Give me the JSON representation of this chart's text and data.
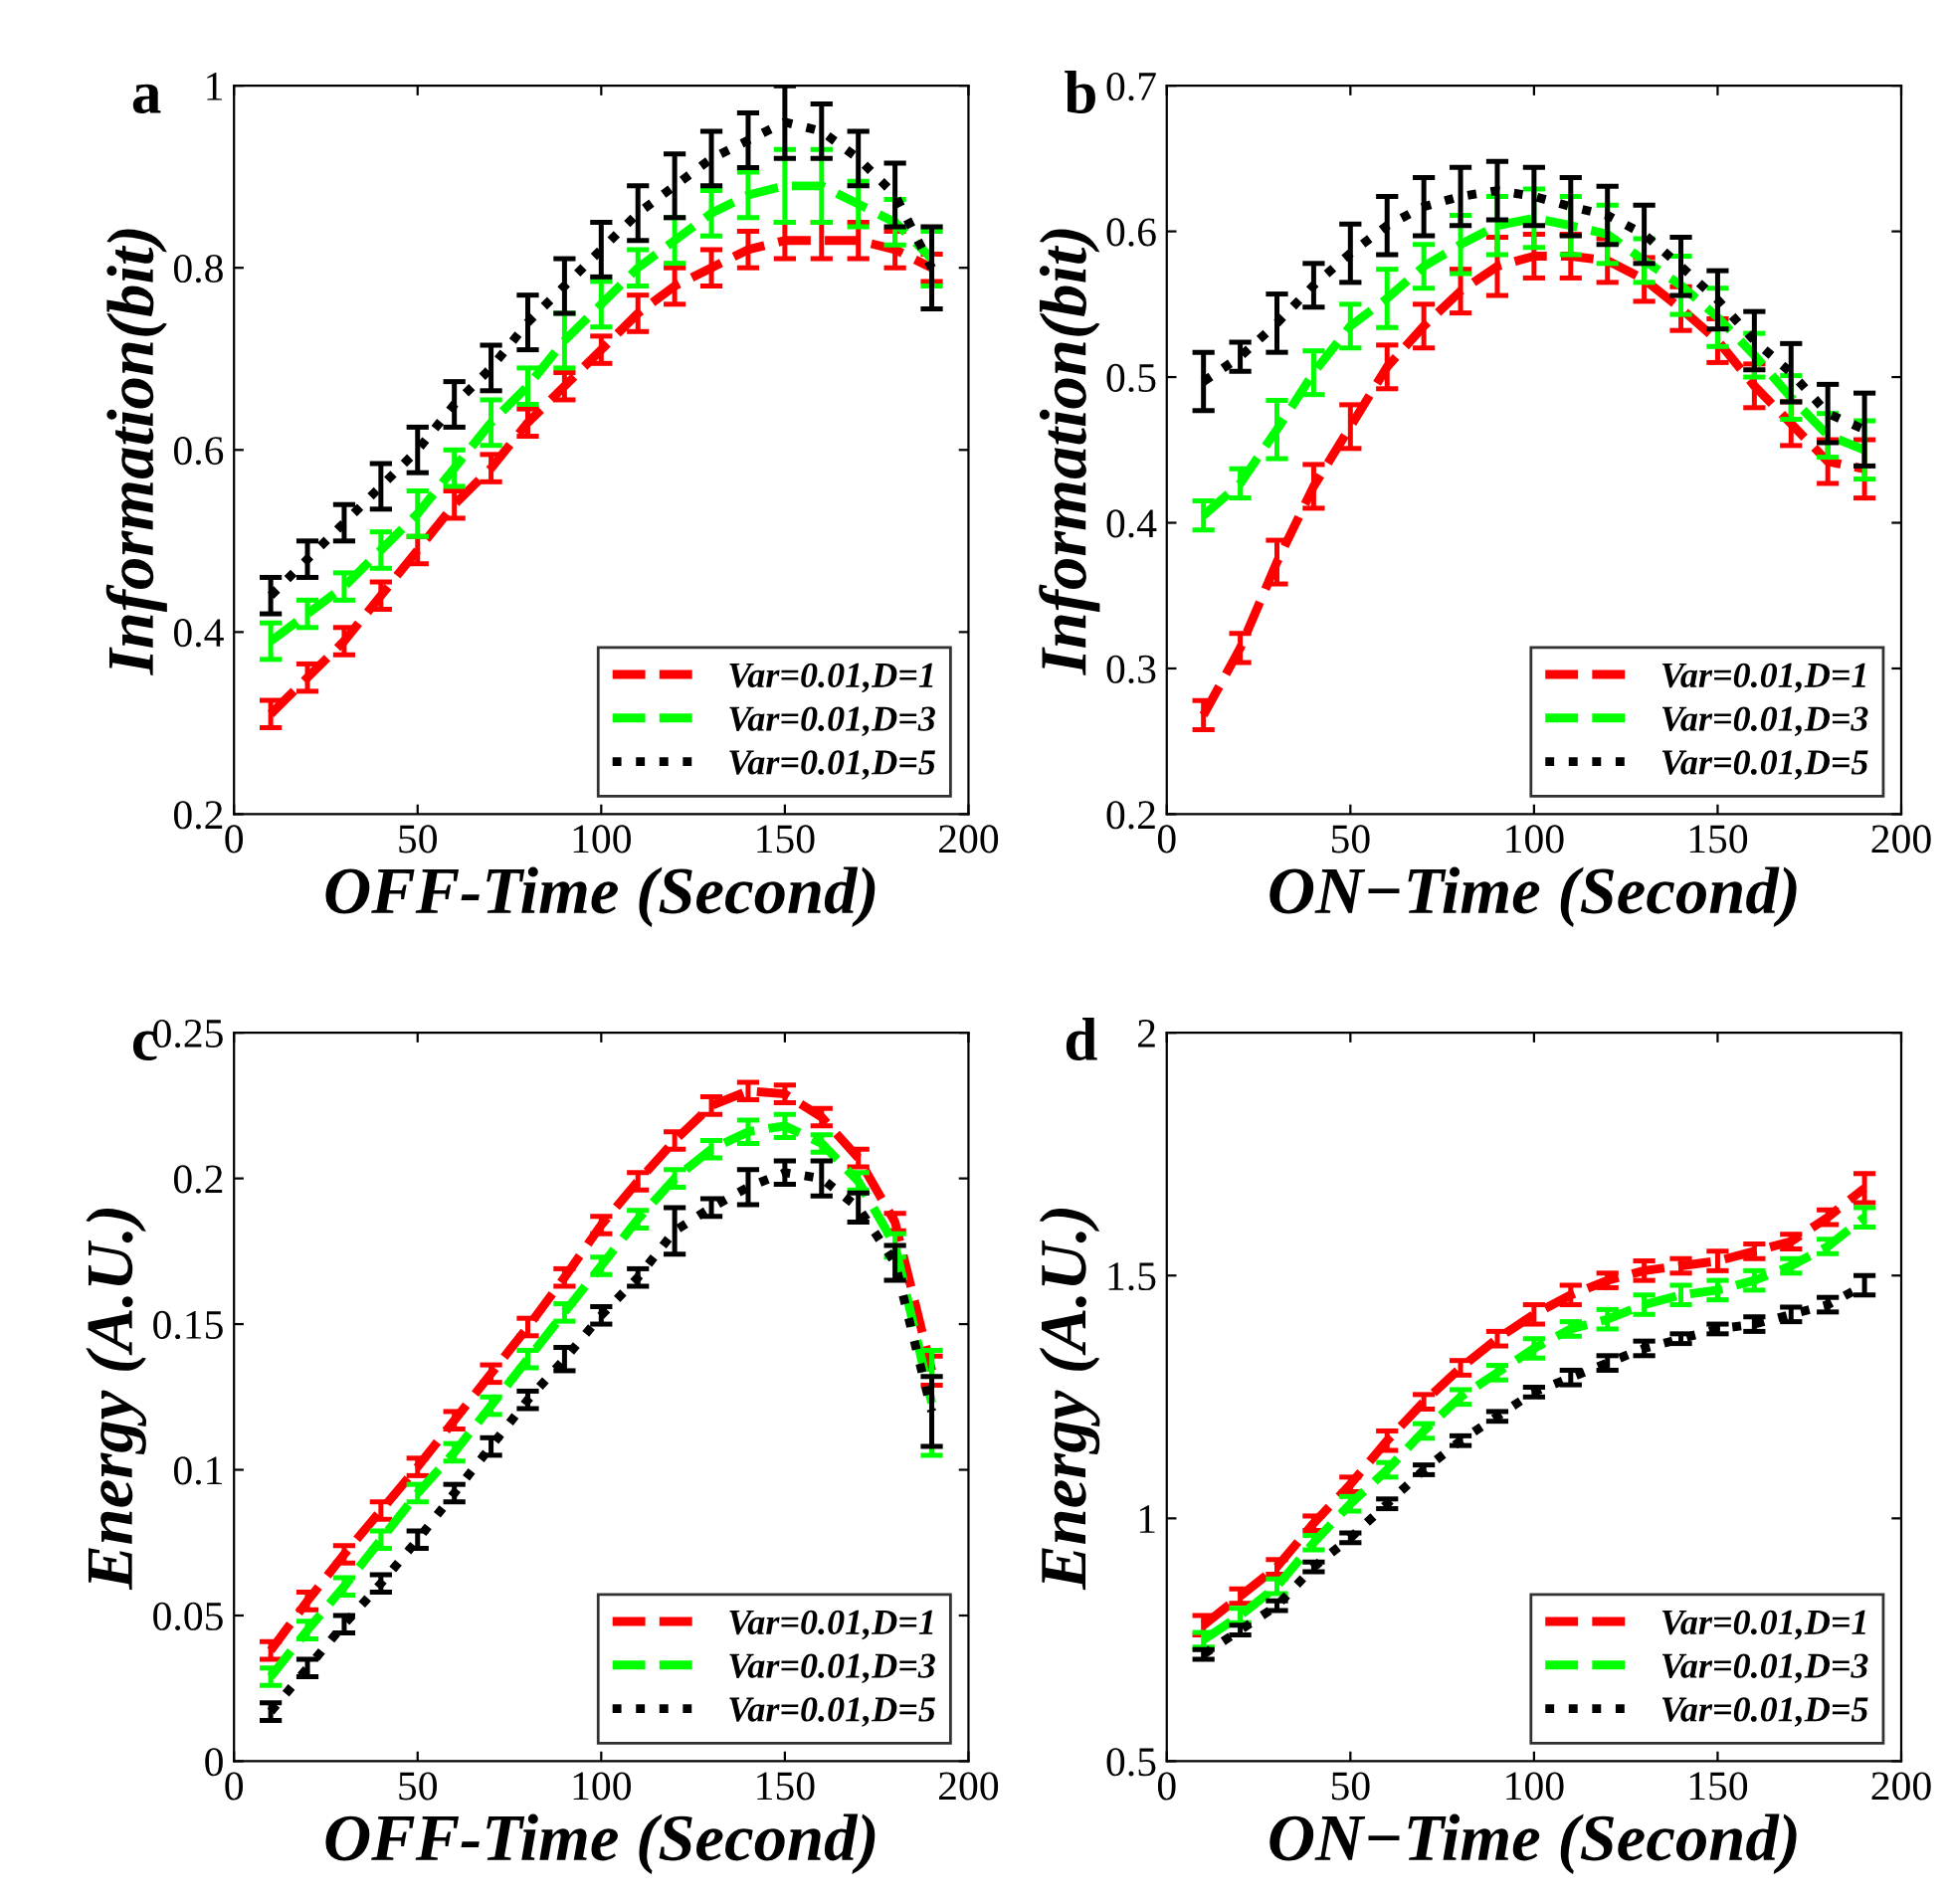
{
  "chart_data": [
    {
      "type": "line",
      "title": "a",
      "xlabel": "OFF-Time (Second)",
      "ylabel": "Information(bit)",
      "x": [
        10,
        20,
        30,
        40,
        50,
        60,
        70,
        80,
        90,
        100,
        110,
        120,
        130,
        140,
        150,
        160,
        170,
        180,
        190
      ],
      "xlim": [
        0,
        200
      ],
      "xticks": [
        0,
        50,
        100,
        150,
        200
      ],
      "ylim": [
        0.2,
        1
      ],
      "yticks": [
        0.2,
        0.4,
        0.6,
        0.8,
        1
      ],
      "legend": "lower right",
      "grid": false,
      "series": [
        {
          "name": "Var=0.01,D=1",
          "color": "#ff0000",
          "line_style": "dashed",
          "values": [
            0.31,
            0.35,
            0.39,
            0.44,
            0.49,
            0.54,
            0.58,
            0.63,
            0.67,
            0.71,
            0.75,
            0.78,
            0.8,
            0.82,
            0.83,
            0.83,
            0.83,
            0.82,
            0.8
          ],
          "errors": [
            0.015,
            0.015,
            0.015,
            0.015,
            0.015,
            0.015,
            0.015,
            0.015,
            0.015,
            0.015,
            0.02,
            0.02,
            0.02,
            0.02,
            0.02,
            0.02,
            0.02,
            0.02,
            0.015
          ]
        },
        {
          "name": "Var=0.01,D=3",
          "color": "#00ff00",
          "line_style": "dashed",
          "values": [
            0.39,
            0.42,
            0.45,
            0.49,
            0.53,
            0.58,
            0.63,
            0.67,
            0.72,
            0.76,
            0.8,
            0.83,
            0.86,
            0.88,
            0.89,
            0.89,
            0.87,
            0.85,
            0.81
          ],
          "errors": [
            0.02,
            0.015,
            0.015,
            0.02,
            0.025,
            0.02,
            0.025,
            0.02,
            0.03,
            0.025,
            0.02,
            0.025,
            0.025,
            0.025,
            0.04,
            0.04,
            0.025,
            0.025,
            0.03
          ]
        },
        {
          "name": "Var=0.01,D=5",
          "color": "#000000",
          "line_style": "dotted",
          "values": [
            0.44,
            0.48,
            0.52,
            0.56,
            0.6,
            0.65,
            0.69,
            0.74,
            0.78,
            0.82,
            0.86,
            0.89,
            0.92,
            0.94,
            0.96,
            0.95,
            0.92,
            0.88,
            0.8
          ],
          "errors": [
            0.02,
            0.02,
            0.02,
            0.025,
            0.025,
            0.025,
            0.025,
            0.03,
            0.03,
            0.03,
            0.03,
            0.035,
            0.03,
            0.03,
            0.04,
            0.03,
            0.03,
            0.035,
            0.045
          ]
        }
      ]
    },
    {
      "type": "line",
      "title": "b",
      "xlabel": "ON−Time (Second)",
      "ylabel": "Information(bit)",
      "x": [
        10,
        20,
        30,
        40,
        50,
        60,
        70,
        80,
        90,
        100,
        110,
        120,
        130,
        140,
        150,
        160,
        170,
        180,
        190
      ],
      "xlim": [
        0,
        200
      ],
      "xticks": [
        0,
        50,
        100,
        150,
        200
      ],
      "ylim": [
        0.2,
        0.7
      ],
      "yticks": [
        0.2,
        0.3,
        0.4,
        0.5,
        0.6,
        0.7
      ],
      "legend": "lower right",
      "grid": false,
      "series": [
        {
          "name": "Var=0.01,D=1",
          "color": "#ff0000",
          "line_style": "dashed",
          "values": [
            0.268,
            0.314,
            0.373,
            0.425,
            0.466,
            0.507,
            0.535,
            0.559,
            0.576,
            0.583,
            0.583,
            0.58,
            0.567,
            0.547,
            0.525,
            0.494,
            0.468,
            0.442,
            0.437
          ],
          "errors": [
            0.01,
            0.01,
            0.015,
            0.015,
            0.015,
            0.015,
            0.015,
            0.015,
            0.02,
            0.015,
            0.015,
            0.015,
            0.015,
            0.015,
            0.015,
            0.015,
            0.015,
            0.015,
            0.02
          ]
        },
        {
          "name": "Var=0.01,D=3",
          "color": "#00ff00",
          "line_style": "dashed",
          "values": [
            0.405,
            0.427,
            0.464,
            0.503,
            0.535,
            0.554,
            0.576,
            0.591,
            0.604,
            0.609,
            0.604,
            0.598,
            0.58,
            0.563,
            0.541,
            0.515,
            0.486,
            0.46,
            0.45
          ],
          "errors": [
            0.01,
            0.01,
            0.02,
            0.015,
            0.015,
            0.02,
            0.015,
            0.02,
            0.02,
            0.02,
            0.02,
            0.02,
            0.015,
            0.02,
            0.02,
            0.015,
            0.015,
            0.015,
            0.02
          ]
        },
        {
          "name": "Var=0.01,D=5",
          "color": "#000000",
          "line_style": "dotted",
          "values": [
            0.497,
            0.514,
            0.537,
            0.563,
            0.585,
            0.604,
            0.617,
            0.624,
            0.628,
            0.624,
            0.617,
            0.611,
            0.598,
            0.576,
            0.553,
            0.525,
            0.503,
            0.475,
            0.464
          ],
          "errors": [
            0.02,
            0.01,
            0.02,
            0.015,
            0.02,
            0.02,
            0.02,
            0.02,
            0.02,
            0.02,
            0.02,
            0.02,
            0.02,
            0.02,
            0.02,
            0.02,
            0.02,
            0.02,
            0.025
          ]
        }
      ]
    },
    {
      "type": "line",
      "title": "c",
      "xlabel": "OFF-Time (Second)",
      "ylabel": "Energy (A.U.)",
      "x": [
        10,
        20,
        30,
        40,
        50,
        60,
        70,
        80,
        90,
        100,
        110,
        120,
        130,
        140,
        150,
        160,
        170,
        180,
        190
      ],
      "xlim": [
        0,
        200
      ],
      "xticks": [
        0,
        50,
        100,
        150,
        200
      ],
      "ylim": [
        0,
        0.25
      ],
      "yticks": [
        0,
        0.05,
        0.1,
        0.15,
        0.2,
        0.25
      ],
      "legend": "lower right",
      "grid": false,
      "series": [
        {
          "name": "Var=0.01,D=1",
          "color": "#ff0000",
          "line_style": "dashed",
          "values": [
            0.038,
            0.055,
            0.071,
            0.086,
            0.101,
            0.117,
            0.133,
            0.149,
            0.166,
            0.184,
            0.199,
            0.213,
            0.225,
            0.23,
            0.229,
            0.221,
            0.207,
            0.185,
            0.134
          ],
          "errors": [
            0.003,
            0.003,
            0.003,
            0.003,
            0.003,
            0.003,
            0.003,
            0.003,
            0.003,
            0.003,
            0.003,
            0.003,
            0.003,
            0.003,
            0.003,
            0.003,
            0.003,
            0.003,
            0.005
          ]
        },
        {
          "name": "Var=0.01,D=3",
          "color": "#00ff00",
          "line_style": "dashed",
          "values": [
            0.029,
            0.045,
            0.06,
            0.076,
            0.092,
            0.106,
            0.122,
            0.138,
            0.154,
            0.17,
            0.186,
            0.2,
            0.21,
            0.216,
            0.218,
            0.212,
            0.199,
            0.177,
            0.123
          ],
          "errors": [
            0.003,
            0.003,
            0.003,
            0.003,
            0.003,
            0.003,
            0.003,
            0.003,
            0.003,
            0.003,
            0.003,
            0.003,
            0.003,
            0.004,
            0.004,
            0.003,
            0.003,
            0.004,
            0.018
          ]
        },
        {
          "name": "Var=0.01,D=5",
          "color": "#000000",
          "line_style": "dotted",
          "values": [
            0.017,
            0.032,
            0.047,
            0.061,
            0.076,
            0.092,
            0.108,
            0.124,
            0.138,
            0.153,
            0.166,
            0.182,
            0.19,
            0.197,
            0.202,
            0.2,
            0.19,
            0.171,
            0.12
          ],
          "errors": [
            0.003,
            0.003,
            0.003,
            0.003,
            0.003,
            0.003,
            0.003,
            0.003,
            0.004,
            0.003,
            0.003,
            0.008,
            0.003,
            0.006,
            0.004,
            0.006,
            0.005,
            0.006,
            0.012
          ]
        }
      ]
    },
    {
      "type": "line",
      "title": "d",
      "xlabel": "ON−Time (Second)",
      "ylabel": "Energy (A.U.)",
      "x": [
        10,
        20,
        30,
        40,
        50,
        60,
        70,
        80,
        90,
        100,
        110,
        120,
        130,
        140,
        150,
        160,
        170,
        180,
        190
      ],
      "xlim": [
        0,
        200
      ],
      "xticks": [
        0,
        50,
        100,
        150,
        200
      ],
      "ylim": [
        0.5,
        2
      ],
      "yticks": [
        0.5,
        1,
        1.5,
        2
      ],
      "legend": "lower right",
      "grid": false,
      "series": [
        {
          "name": "Var=0.01,D=1",
          "color": "#ff0000",
          "line_style": "dashed",
          "values": [
            0.78,
            0.84,
            0.9,
            0.99,
            1.07,
            1.16,
            1.24,
            1.31,
            1.37,
            1.42,
            1.46,
            1.49,
            1.51,
            1.52,
            1.53,
            1.55,
            1.57,
            1.62,
            1.68
          ],
          "errors": [
            0.02,
            0.015,
            0.015,
            0.015,
            0.015,
            0.02,
            0.015,
            0.015,
            0.015,
            0.02,
            0.02,
            0.015,
            0.02,
            0.015,
            0.02,
            0.015,
            0.015,
            0.015,
            0.03
          ]
        },
        {
          "name": "Var=0.01,D=3",
          "color": "#00ff00",
          "line_style": "dashed",
          "values": [
            0.75,
            0.8,
            0.86,
            0.95,
            1.03,
            1.1,
            1.18,
            1.25,
            1.3,
            1.35,
            1.39,
            1.41,
            1.44,
            1.46,
            1.47,
            1.49,
            1.52,
            1.56,
            1.62
          ],
          "errors": [
            0.015,
            0.015,
            0.015,
            0.015,
            0.015,
            0.015,
            0.015,
            0.015,
            0.015,
            0.02,
            0.015,
            0.02,
            0.02,
            0.02,
            0.02,
            0.02,
            0.015,
            0.015,
            0.02
          ]
        },
        {
          "name": "Var=0.01,D=5",
          "color": "#000000",
          "line_style": "dotted",
          "values": [
            0.72,
            0.77,
            0.82,
            0.9,
            0.96,
            1.03,
            1.1,
            1.16,
            1.21,
            1.26,
            1.29,
            1.32,
            1.35,
            1.37,
            1.39,
            1.4,
            1.42,
            1.44,
            1.48
          ],
          "errors": [
            0.01,
            0.01,
            0.01,
            0.01,
            0.01,
            0.01,
            0.01,
            0.01,
            0.01,
            0.01,
            0.015,
            0.015,
            0.015,
            0.01,
            0.01,
            0.015,
            0.015,
            0.015,
            0.02
          ]
        }
      ]
    }
  ]
}
